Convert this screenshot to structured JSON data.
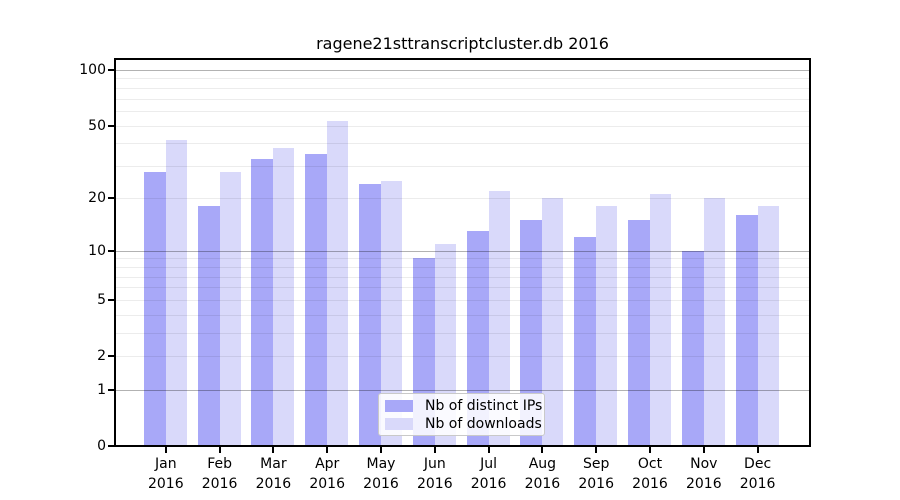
{
  "chart_data": {
    "type": "bar",
    "title": "ragene21sttranscriptcluster.db 2016",
    "y_scale": "log1p",
    "grid": true,
    "legend_position": "bottom-center",
    "categories": [
      "Jan 2016",
      "Feb 2016",
      "Mar 2016",
      "Apr 2016",
      "May 2016",
      "Jun 2016",
      "Jul 2016",
      "Aug 2016",
      "Sep 2016",
      "Oct 2016",
      "Nov 2016",
      "Dec 2016"
    ],
    "series": [
      {
        "id": "distinct-ips",
        "name": "Nb of distinct IPs",
        "color": "#a8a8f8",
        "values": [
          28,
          18,
          33,
          35,
          24,
          9,
          13,
          15,
          12,
          15,
          10,
          16
        ]
      },
      {
        "id": "downloads",
        "name": "Nb of downloads",
        "color": "#d9d9fa",
        "values": [
          42,
          28,
          38,
          53,
          25,
          11,
          22,
          20,
          18,
          21,
          20,
          18
        ]
      }
    ],
    "y_ticks": [
      0,
      1,
      2,
      5,
      10,
      20,
      50,
      100
    ],
    "y_gridlines_major": [
      1,
      10,
      100
    ],
    "y_gridlines_minor": [
      2,
      3,
      4,
      5,
      6,
      7,
      8,
      9,
      20,
      30,
      40,
      50,
      60,
      70,
      80,
      90
    ],
    "ylim": [
      0,
      114
    ]
  }
}
